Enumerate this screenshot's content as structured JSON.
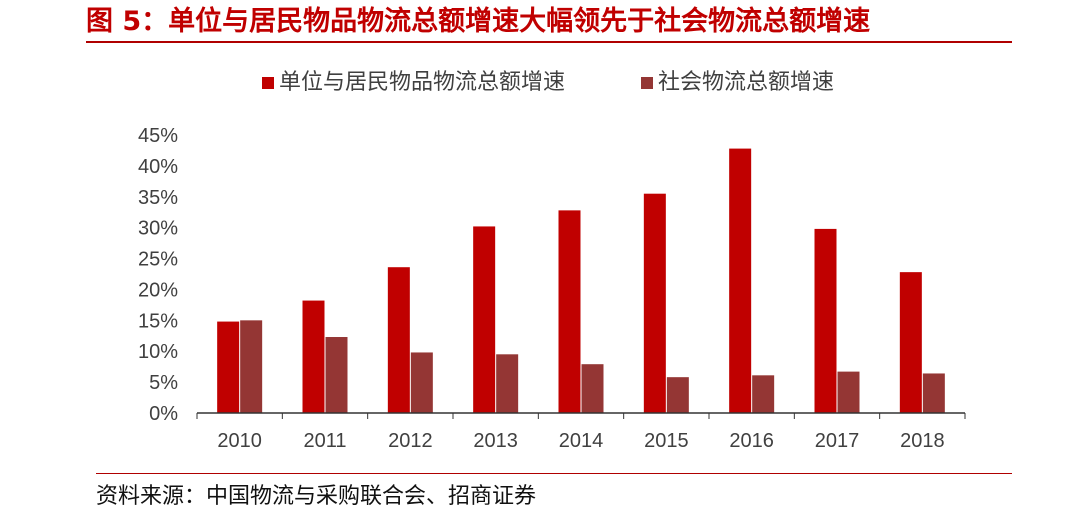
{
  "figure": {
    "title": "图 5：单位与居民物品物流总额增速大幅领先于社会物流总额增速",
    "source": "资料来源：中国物流与采购联合会、招商证券"
  },
  "colors": {
    "series_1": "#C00000",
    "series_2": "#943634",
    "title": "#C00000",
    "axis": "#333333"
  },
  "chart_data": {
    "type": "bar",
    "title": "",
    "xlabel": "",
    "ylabel": "",
    "categories": [
      "2010",
      "2011",
      "2012",
      "2013",
      "2014",
      "2015",
      "2016",
      "2017",
      "2018"
    ],
    "series": [
      {
        "name": "单位与居民物品物流总额增速",
        "values": [
          14.8,
          18.2,
          23.6,
          30.2,
          32.8,
          35.5,
          42.8,
          29.8,
          22.8
        ]
      },
      {
        "name": "社会物流总额增速",
        "values": [
          15.0,
          12.3,
          9.8,
          9.5,
          7.9,
          5.8,
          6.1,
          6.7,
          6.4
        ]
      }
    ],
    "ylim": [
      0,
      45
    ],
    "y_ticks": [
      "0%",
      "5%",
      "10%",
      "15%",
      "20%",
      "25%",
      "30%",
      "35%",
      "40%",
      "45%"
    ],
    "grid": false,
    "legend": "top-center"
  }
}
